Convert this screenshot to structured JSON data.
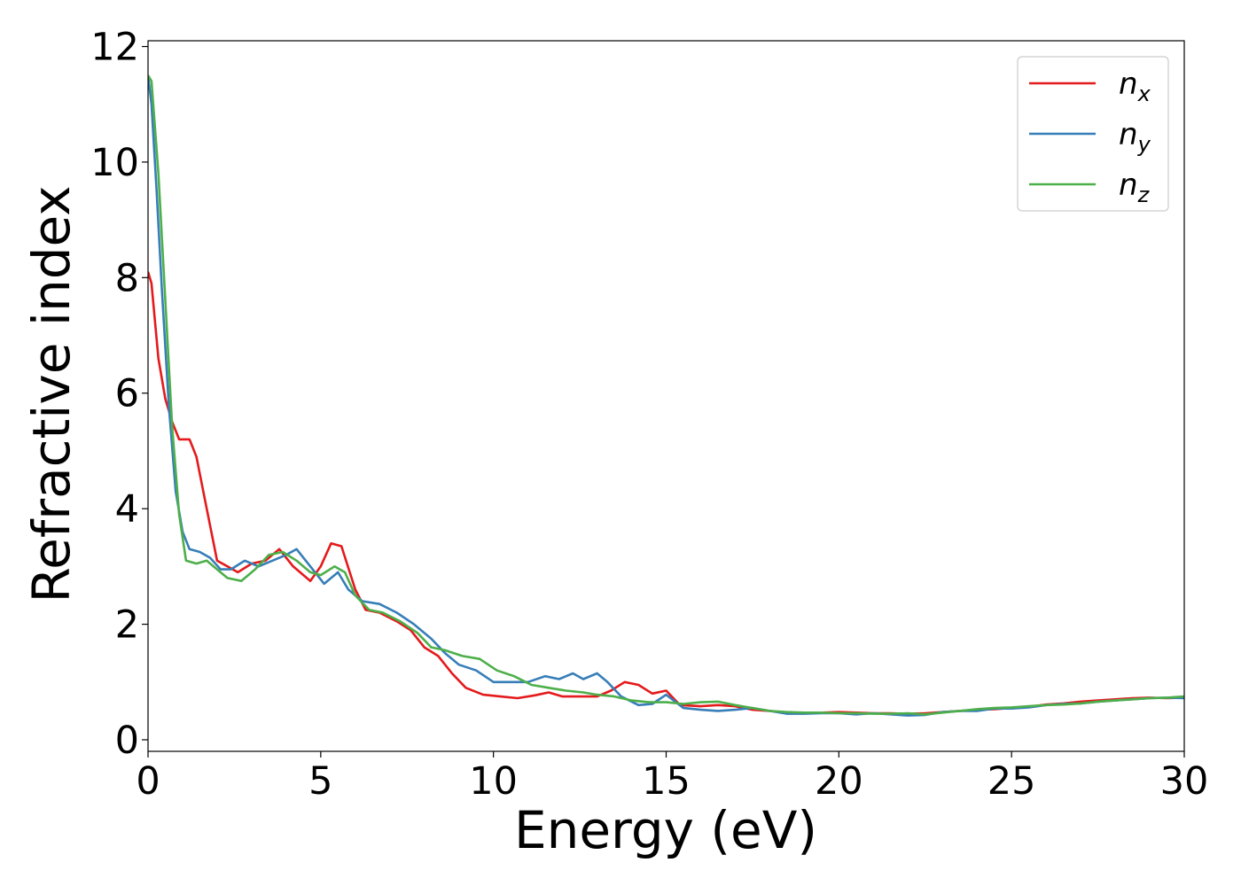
{
  "chart_data": {
    "type": "line",
    "title": "",
    "xlabel": "Energy (eV)",
    "ylabel": "Refractive index",
    "xlim": [
      0,
      30
    ],
    "ylim": [
      -0.2,
      12.1
    ],
    "xticks": [
      0,
      5,
      10,
      15,
      20,
      25,
      30
    ],
    "yticks": [
      0,
      2,
      4,
      6,
      8,
      10,
      12
    ],
    "grid": false,
    "legend_position": "top-right",
    "series": [
      {
        "name": "n_x",
        "label_base": "n",
        "label_sub": "x",
        "color": "#e41a1c",
        "points": [
          [
            0,
            8.1
          ],
          [
            0.1,
            7.9
          ],
          [
            0.3,
            6.6
          ],
          [
            0.5,
            5.9
          ],
          [
            0.7,
            5.5
          ],
          [
            0.9,
            5.2
          ],
          [
            1.2,
            5.2
          ],
          [
            1.4,
            4.9
          ],
          [
            1.7,
            4.0
          ],
          [
            2.0,
            3.1
          ],
          [
            2.3,
            3.0
          ],
          [
            2.6,
            2.9
          ],
          [
            3.0,
            3.05
          ],
          [
            3.4,
            3.1
          ],
          [
            3.8,
            3.3
          ],
          [
            4.2,
            3.0
          ],
          [
            4.7,
            2.75
          ],
          [
            5.0,
            3.0
          ],
          [
            5.3,
            3.4
          ],
          [
            5.6,
            3.35
          ],
          [
            6.0,
            2.6
          ],
          [
            6.3,
            2.25
          ],
          [
            6.7,
            2.2
          ],
          [
            7.2,
            2.05
          ],
          [
            7.6,
            1.9
          ],
          [
            8.0,
            1.6
          ],
          [
            8.4,
            1.45
          ],
          [
            8.8,
            1.15
          ],
          [
            9.2,
            0.9
          ],
          [
            9.7,
            0.78
          ],
          [
            10.2,
            0.75
          ],
          [
            10.7,
            0.72
          ],
          [
            11.2,
            0.77
          ],
          [
            11.6,
            0.82
          ],
          [
            12.0,
            0.75
          ],
          [
            12.5,
            0.75
          ],
          [
            13.0,
            0.75
          ],
          [
            13.4,
            0.85
          ],
          [
            13.8,
            1.0
          ],
          [
            14.2,
            0.95
          ],
          [
            14.6,
            0.8
          ],
          [
            15.0,
            0.85
          ],
          [
            15.4,
            0.6
          ],
          [
            16.0,
            0.58
          ],
          [
            16.5,
            0.6
          ],
          [
            17.0,
            0.58
          ],
          [
            17.5,
            0.52
          ],
          [
            18.0,
            0.5
          ],
          [
            18.5,
            0.47
          ],
          [
            19.0,
            0.46
          ],
          [
            19.5,
            0.47
          ],
          [
            20.0,
            0.48
          ],
          [
            20.5,
            0.47
          ],
          [
            21.0,
            0.46
          ],
          [
            21.5,
            0.46
          ],
          [
            22.0,
            0.45
          ],
          [
            22.5,
            0.46
          ],
          [
            23.0,
            0.48
          ],
          [
            23.5,
            0.5
          ],
          [
            24.0,
            0.52
          ],
          [
            24.5,
            0.53
          ],
          [
            25.0,
            0.55
          ],
          [
            25.5,
            0.57
          ],
          [
            26.0,
            0.61
          ],
          [
            26.5,
            0.63
          ],
          [
            27.0,
            0.66
          ],
          [
            27.5,
            0.68
          ],
          [
            28.0,
            0.7
          ],
          [
            28.5,
            0.72
          ],
          [
            29.0,
            0.73
          ],
          [
            29.5,
            0.72
          ],
          [
            30.0,
            0.73
          ]
        ]
      },
      {
        "name": "n_y",
        "label_base": "n",
        "label_sub": "y",
        "color": "#377eb8",
        "points": [
          [
            0,
            11.5
          ],
          [
            0.1,
            11.0
          ],
          [
            0.25,
            9.5
          ],
          [
            0.4,
            7.8
          ],
          [
            0.6,
            5.8
          ],
          [
            0.8,
            4.3
          ],
          [
            1.0,
            3.6
          ],
          [
            1.2,
            3.3
          ],
          [
            1.5,
            3.25
          ],
          [
            1.8,
            3.15
          ],
          [
            2.1,
            2.95
          ],
          [
            2.4,
            2.95
          ],
          [
            2.8,
            3.1
          ],
          [
            3.2,
            3.0
          ],
          [
            3.6,
            3.1
          ],
          [
            4.0,
            3.2
          ],
          [
            4.3,
            3.3
          ],
          [
            4.7,
            3.0
          ],
          [
            5.1,
            2.7
          ],
          [
            5.5,
            2.9
          ],
          [
            5.8,
            2.6
          ],
          [
            6.2,
            2.4
          ],
          [
            6.7,
            2.35
          ],
          [
            7.2,
            2.2
          ],
          [
            7.7,
            2.0
          ],
          [
            8.2,
            1.75
          ],
          [
            8.6,
            1.5
          ],
          [
            9.0,
            1.3
          ],
          [
            9.5,
            1.2
          ],
          [
            10.0,
            1.0
          ],
          [
            10.5,
            1.0
          ],
          [
            11.0,
            1.0
          ],
          [
            11.5,
            1.1
          ],
          [
            11.9,
            1.05
          ],
          [
            12.3,
            1.15
          ],
          [
            12.6,
            1.05
          ],
          [
            13.0,
            1.15
          ],
          [
            13.3,
            1.0
          ],
          [
            13.7,
            0.75
          ],
          [
            14.2,
            0.6
          ],
          [
            14.6,
            0.62
          ],
          [
            15.0,
            0.78
          ],
          [
            15.5,
            0.55
          ],
          [
            16.0,
            0.52
          ],
          [
            16.5,
            0.5
          ],
          [
            17.0,
            0.52
          ],
          [
            17.5,
            0.55
          ],
          [
            18.0,
            0.5
          ],
          [
            18.5,
            0.45
          ],
          [
            19.0,
            0.45
          ],
          [
            19.5,
            0.46
          ],
          [
            20.0,
            0.46
          ],
          [
            20.5,
            0.44
          ],
          [
            21.0,
            0.46
          ],
          [
            21.5,
            0.44
          ],
          [
            22.0,
            0.42
          ],
          [
            22.5,
            0.43
          ],
          [
            23.0,
            0.48
          ],
          [
            23.5,
            0.5
          ],
          [
            24.0,
            0.5
          ],
          [
            24.5,
            0.54
          ],
          [
            25.0,
            0.54
          ],
          [
            25.5,
            0.56
          ],
          [
            26.0,
            0.6
          ],
          [
            26.5,
            0.62
          ],
          [
            27.0,
            0.63
          ],
          [
            27.5,
            0.66
          ],
          [
            28.0,
            0.68
          ],
          [
            28.5,
            0.7
          ],
          [
            29.0,
            0.72
          ],
          [
            29.5,
            0.73
          ],
          [
            30.0,
            0.72
          ]
        ]
      },
      {
        "name": "n_z",
        "label_base": "n",
        "label_sub": "z",
        "color": "#4daf4a",
        "points": [
          [
            0,
            11.5
          ],
          [
            0.1,
            11.4
          ],
          [
            0.3,
            9.8
          ],
          [
            0.5,
            7.6
          ],
          [
            0.7,
            5.4
          ],
          [
            0.9,
            3.9
          ],
          [
            1.1,
            3.1
          ],
          [
            1.4,
            3.05
          ],
          [
            1.7,
            3.1
          ],
          [
            2.0,
            2.95
          ],
          [
            2.3,
            2.8
          ],
          [
            2.7,
            2.75
          ],
          [
            3.1,
            2.95
          ],
          [
            3.5,
            3.2
          ],
          [
            3.9,
            3.25
          ],
          [
            4.3,
            3.1
          ],
          [
            4.7,
            2.9
          ],
          [
            5.0,
            2.85
          ],
          [
            5.4,
            3.0
          ],
          [
            5.7,
            2.9
          ],
          [
            6.0,
            2.5
          ],
          [
            6.4,
            2.25
          ],
          [
            6.8,
            2.2
          ],
          [
            7.3,
            2.05
          ],
          [
            7.8,
            1.85
          ],
          [
            8.2,
            1.6
          ],
          [
            8.6,
            1.55
          ],
          [
            9.1,
            1.45
          ],
          [
            9.6,
            1.4
          ],
          [
            10.1,
            1.2
          ],
          [
            10.6,
            1.1
          ],
          [
            11.1,
            0.95
          ],
          [
            11.6,
            0.9
          ],
          [
            12.1,
            0.85
          ],
          [
            12.6,
            0.82
          ],
          [
            13.0,
            0.78
          ],
          [
            13.5,
            0.75
          ],
          [
            14.0,
            0.68
          ],
          [
            14.5,
            0.65
          ],
          [
            15.0,
            0.65
          ],
          [
            15.5,
            0.62
          ],
          [
            16.0,
            0.65
          ],
          [
            16.5,
            0.66
          ],
          [
            17.0,
            0.6
          ],
          [
            17.5,
            0.55
          ],
          [
            18.0,
            0.5
          ],
          [
            18.5,
            0.48
          ],
          [
            19.0,
            0.47
          ],
          [
            19.5,
            0.47
          ],
          [
            20.0,
            0.46
          ],
          [
            20.5,
            0.46
          ],
          [
            21.0,
            0.45
          ],
          [
            21.5,
            0.45
          ],
          [
            22.0,
            0.46
          ],
          [
            22.5,
            0.44
          ],
          [
            23.0,
            0.47
          ],
          [
            23.5,
            0.5
          ],
          [
            24.0,
            0.53
          ],
          [
            24.5,
            0.55
          ],
          [
            25.0,
            0.56
          ],
          [
            25.5,
            0.58
          ],
          [
            26.0,
            0.6
          ],
          [
            26.5,
            0.61
          ],
          [
            27.0,
            0.63
          ],
          [
            27.5,
            0.66
          ],
          [
            28.0,
            0.68
          ],
          [
            28.5,
            0.7
          ],
          [
            29.0,
            0.72
          ],
          [
            29.5,
            0.73
          ],
          [
            30.0,
            0.75
          ]
        ]
      }
    ]
  }
}
